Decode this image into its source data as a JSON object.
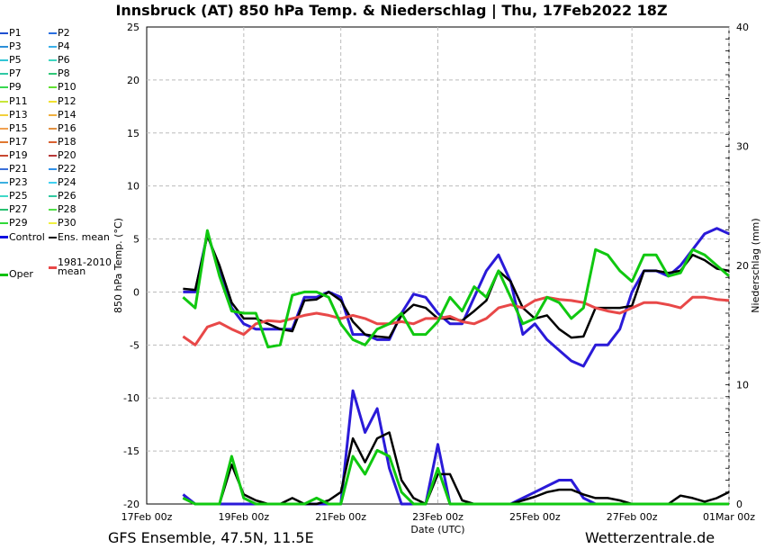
{
  "title": "Innsbruck  (AT)  850 hPa Temp. & Niederschlag | Thu, 17Feb2022 18Z",
  "footer": {
    "left": "GFS Ensemble, 47.5N, 11.5E",
    "right": "Wetterzentrale.de"
  },
  "legend": [
    {
      "label": "P1",
      "color": "#1f4fd0"
    },
    {
      "label": "P2",
      "color": "#2a6fe0"
    },
    {
      "label": "P3",
      "color": "#2c8fd8"
    },
    {
      "label": "P4",
      "color": "#3ab0e8"
    },
    {
      "label": "P5",
      "color": "#33c6d6"
    },
    {
      "label": "P6",
      "color": "#3ed6c0"
    },
    {
      "label": "P7",
      "color": "#2fc8a4"
    },
    {
      "label": "P8",
      "color": "#30c878"
    },
    {
      "label": "P9",
      "color": "#38d850"
    },
    {
      "label": "P10",
      "color": "#60e030"
    },
    {
      "label": "P11",
      "color": "#c8e63a"
    },
    {
      "label": "P12",
      "color": "#f0e030"
    },
    {
      "label": "P13",
      "color": "#f2d03c"
    },
    {
      "label": "P14",
      "color": "#f0b040"
    },
    {
      "label": "P15",
      "color": "#f0a050"
    },
    {
      "label": "P16",
      "color": "#e09040"
    },
    {
      "label": "P17",
      "color": "#e07830"
    },
    {
      "label": "P18",
      "color": "#d86030"
    },
    {
      "label": "P19",
      "color": "#c84830"
    },
    {
      "label": "P20",
      "color": "#b83838"
    },
    {
      "label": "P21",
      "color": "#3a6fd8"
    },
    {
      "label": "P22",
      "color": "#3090e8"
    },
    {
      "label": "P23",
      "color": "#3cb0e0"
    },
    {
      "label": "P24",
      "color": "#40d0f0"
    },
    {
      "label": "P25",
      "color": "#40d8c8"
    },
    {
      "label": "P26",
      "color": "#30c8a0"
    },
    {
      "label": "P27",
      "color": "#28c070"
    },
    {
      "label": "P28",
      "color": "#50e048"
    },
    {
      "label": "P29",
      "color": "#30d838"
    },
    {
      "label": "P30",
      "color": "#f0f040"
    },
    {
      "label": "Control",
      "color": "#1010e0",
      "width": 3
    },
    {
      "label": "Ens. mean",
      "color": "#000000",
      "width": 2
    },
    {
      "label": "1981-2010 mean",
      "color": "#e84848",
      "width": 3
    },
    {
      "label": "Oper",
      "color": "#10c010",
      "width": 3
    }
  ],
  "chart_data": {
    "type": "line",
    "xlabel": "Date (UTC)",
    "ylabel_left": "850 hPa Temp. (°C)",
    "ylabel_right": "Niederschlag (mm)",
    "ylim": [
      -20,
      25
    ],
    "y2lim": [
      0,
      40
    ],
    "yticks": [
      -20,
      -15,
      -10,
      -5,
      0,
      5,
      10,
      15,
      20,
      25
    ],
    "y2ticks": [
      0,
      10,
      20,
      30,
      40
    ],
    "xlim_days": [
      0,
      12
    ],
    "xticks": [
      {
        "day": 0,
        "label": "17Feb 00z"
      },
      {
        "day": 2,
        "label": "19Feb 00z"
      },
      {
        "day": 4,
        "label": "21Feb 00z"
      },
      {
        "day": 6,
        "label": "23Feb 00z"
      },
      {
        "day": 8,
        "label": "25Feb 00z"
      },
      {
        "day": 10,
        "label": "27Feb 00z"
      },
      {
        "day": 12,
        "label": "01Mar 00z"
      }
    ],
    "grid": true,
    "step_days": 0.25,
    "start_day": 0.75,
    "temp_series": [
      {
        "name": "Control",
        "color": "#2a1ad8",
        "width": 3,
        "values": [
          0,
          0,
          5.5,
          2,
          -1.5,
          -3,
          -3.5,
          -3.5,
          -3.5,
          -3.5,
          -0.5,
          -0.5,
          0,
          -0.5,
          -4,
          -4,
          -4.5,
          -4.5,
          -2,
          -0.2,
          -0.5,
          -2,
          -3,
          -3,
          -0.5,
          2,
          3.5,
          1,
          -4,
          -3,
          -4.5,
          -5.5,
          -6.5,
          -7,
          -5,
          -5,
          -3.5,
          0,
          2,
          2,
          1.5,
          2.5,
          4,
          5.5,
          6,
          5.5
        ]
      },
      {
        "name": "Ens. mean",
        "color": "#000000",
        "width": 2.5,
        "values": [
          0.3,
          0.2,
          5.3,
          2.5,
          -1,
          -2.5,
          -2.5,
          -3,
          -3.5,
          -3.7,
          -0.8,
          -0.7,
          0,
          -0.8,
          -2.8,
          -4,
          -4.2,
          -4.3,
          -2.2,
          -1.2,
          -1.5,
          -2.5,
          -2.5,
          -2.7,
          -1.8,
          -0.8,
          2,
          1,
          -1.5,
          -2.5,
          -2.2,
          -3.5,
          -4.3,
          -4.2,
          -1.5,
          -1.5,
          -1.5,
          -1.3,
          2,
          2,
          1.8,
          2,
          3.5,
          3,
          2.2,
          2
        ]
      },
      {
        "name": "1981-2010 mean",
        "color": "#e84848",
        "width": 3,
        "values": [
          -4.2,
          -5,
          -3.3,
          -2.9,
          -3.5,
          -4,
          -3,
          -2.7,
          -2.8,
          -2.5,
          -2.2,
          -2.0,
          -2.2,
          -2.5,
          -2.2,
          -2.5,
          -3,
          -3,
          -2.8,
          -3,
          -2.5,
          -2.5,
          -2.3,
          -2.8,
          -3,
          -2.5,
          -1.5,
          -1.2,
          -1.5,
          -0.8,
          -0.5,
          -0.7,
          -0.8,
          -1.0,
          -1.5,
          -1.8,
          -2.0,
          -1.5,
          -1.0,
          -1.0,
          -1.2,
          -1.5,
          -0.5,
          -0.5,
          -0.7,
          -0.8
        ]
      },
      {
        "name": "Oper",
        "color": "#10c810",
        "width": 3,
        "values": [
          -0.5,
          -1.5,
          5.8,
          1.5,
          -1.8,
          -2,
          -2,
          -5.2,
          -5,
          -0.3,
          0,
          0,
          -0.5,
          -3,
          -4.5,
          -5,
          -3.5,
          -3,
          -2,
          -4,
          -4,
          -2.8,
          -0.5,
          -1.8,
          0.5,
          -0.5,
          2,
          -0.5,
          -3,
          -2.5,
          -0.5,
          -1,
          -2.5,
          -1.5,
          4,
          3.5,
          2,
          1,
          3.5,
          3.5,
          1.5,
          1.8,
          4,
          3.5,
          2.5,
          1.5
        ]
      }
    ],
    "precip_series": [
      {
        "name": "Control",
        "color": "#2a1ad8",
        "width": 3,
        "values": [
          0.8,
          0,
          0,
          0,
          0,
          0,
          0,
          0,
          0,
          0,
          0,
          0,
          0,
          0,
          9.5,
          6,
          8,
          3,
          0,
          0,
          0,
          5,
          0,
          0,
          0,
          0,
          0,
          0,
          0.5,
          1,
          1.5,
          2,
          2,
          0.5,
          0,
          0,
          0,
          0,
          0,
          0,
          0,
          0,
          0,
          0,
          0,
          0
        ]
      },
      {
        "name": "Ens. mean",
        "color": "#000000",
        "width": 2.5,
        "values": [
          0.5,
          0,
          0,
          0,
          3.3,
          0.8,
          0.3,
          0,
          0,
          0.5,
          0,
          0,
          0.3,
          1,
          5.5,
          3.5,
          5.5,
          6,
          2,
          0.5,
          0,
          2.5,
          2.5,
          0.3,
          0,
          0,
          0,
          0,
          0.3,
          0.6,
          1,
          1.2,
          1.2,
          0.8,
          0.5,
          0.5,
          0.3,
          0,
          0,
          0,
          0,
          0.7,
          0.5,
          0.2,
          0.5,
          1
        ]
      },
      {
        "name": "Oper",
        "color": "#10c810",
        "width": 3,
        "values": [
          0.5,
          0,
          0,
          0,
          4,
          0.5,
          0,
          0,
          0,
          0,
          0,
          0.5,
          0,
          0,
          4,
          2.5,
          4.5,
          4,
          1,
          0,
          0,
          3,
          0,
          0,
          0,
          0,
          0,
          0,
          0,
          0,
          0,
          0,
          0,
          0,
          0,
          0,
          0,
          0,
          0,
          0,
          0,
          0,
          0,
          0,
          0,
          0
        ]
      }
    ]
  }
}
